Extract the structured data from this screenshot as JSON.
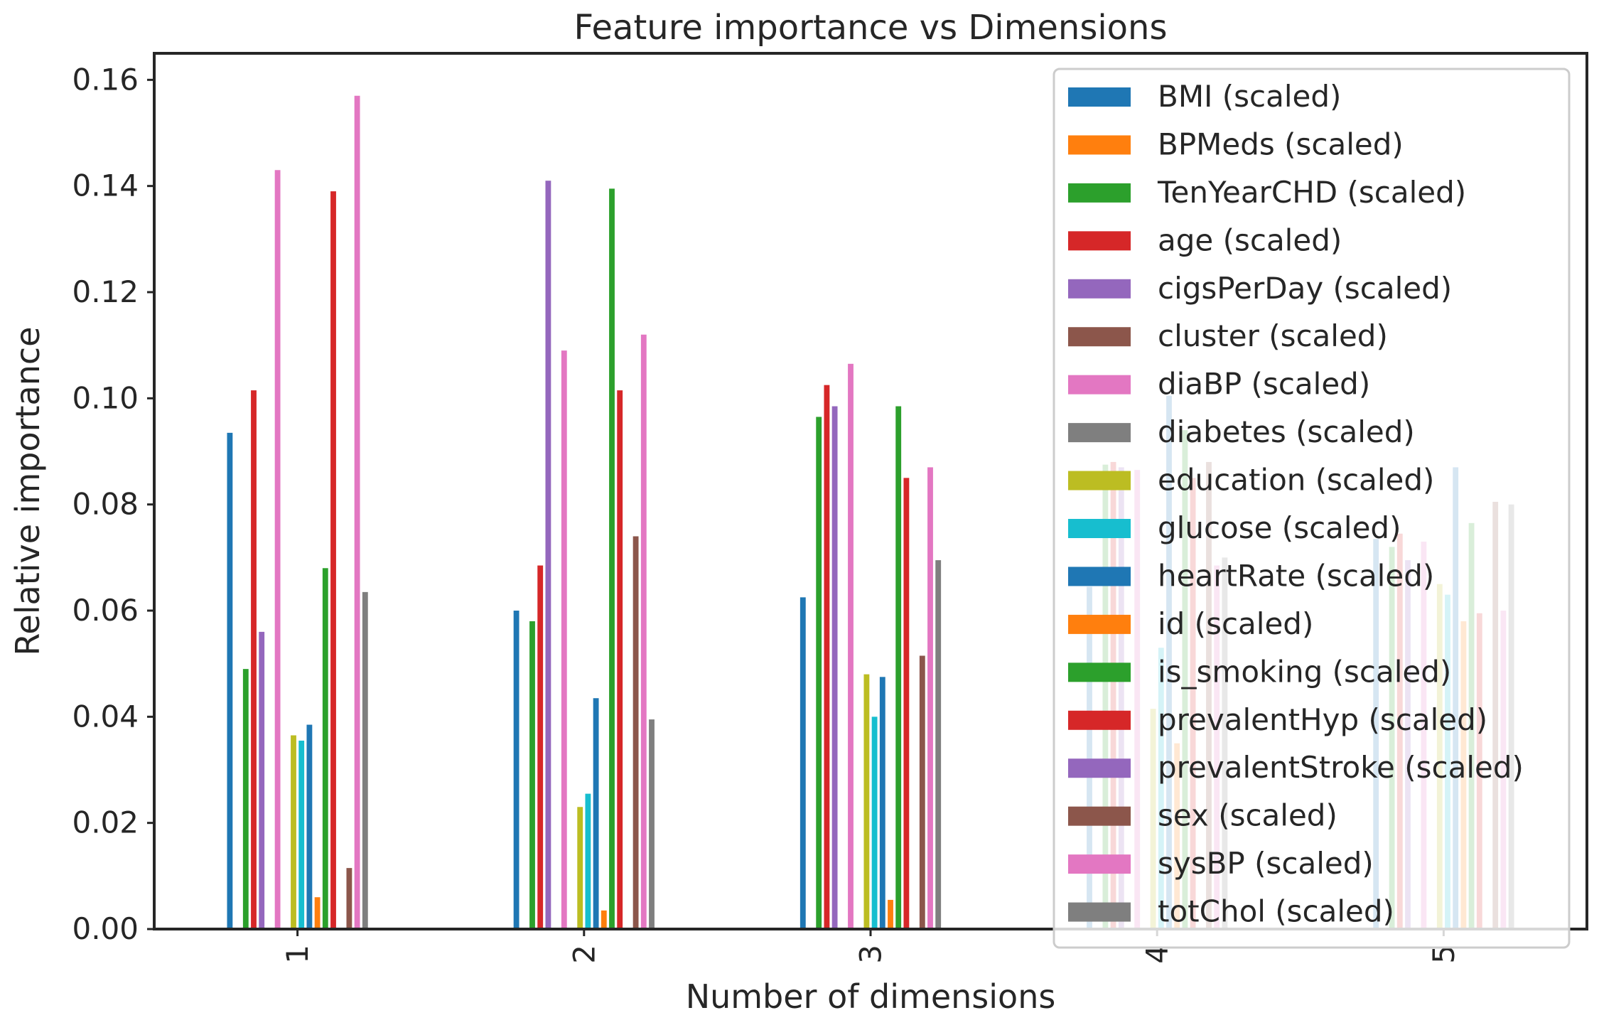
{
  "chart_data": {
    "type": "bar",
    "title": "Feature importance vs Dimensions",
    "xlabel": "Number of dimensions",
    "ylabel": "Relative importance",
    "categories": [
      "1",
      "2",
      "3",
      "4",
      "5"
    ],
    "ylim": [
      0,
      0.165
    ],
    "yticks": [
      "0.00",
      "0.02",
      "0.04",
      "0.06",
      "0.08",
      "0.10",
      "0.12",
      "0.14",
      "0.16"
    ],
    "grid": false,
    "legend_position": "top-right",
    "series": [
      {
        "name": "BMI (scaled)",
        "color": "#1f77b4",
        "values": [
          0.0935,
          0.06,
          0.0625,
          0.0645,
          0.0735
        ]
      },
      {
        "name": "BPMeds (scaled)",
        "color": "#ff7f0e",
        "values": [
          0,
          0,
          0,
          0,
          0
        ]
      },
      {
        "name": "TenYearCHD (scaled)",
        "color": "#2ca02c",
        "values": [
          0.049,
          0.058,
          0.0965,
          0.0875,
          0.072
        ]
      },
      {
        "name": "age (scaled)",
        "color": "#d62728",
        "values": [
          0.1015,
          0.0685,
          0.1025,
          0.088,
          0.0745
        ]
      },
      {
        "name": "cigsPerDay (scaled)",
        "color": "#9467bd",
        "values": [
          0.056,
          0.141,
          0.0985,
          0.087,
          0.0695
        ]
      },
      {
        "name": "cluster (scaled)",
        "color": "#8c564b",
        "values": [
          0,
          0,
          0,
          0,
          0
        ]
      },
      {
        "name": "diaBP (scaled)",
        "color": "#e377c2",
        "values": [
          0.143,
          0.109,
          0.1065,
          0.0865,
          0.073
        ]
      },
      {
        "name": "diabetes (scaled)",
        "color": "#7f7f7f",
        "values": [
          0,
          0,
          0,
          0,
          0
        ]
      },
      {
        "name": "education (scaled)",
        "color": "#bcbd22",
        "values": [
          0.0365,
          0.023,
          0.048,
          0.0415,
          0.065
        ]
      },
      {
        "name": "glucose (scaled)",
        "color": "#17becf",
        "values": [
          0.0355,
          0.0255,
          0.04,
          0.053,
          0.063
        ]
      },
      {
        "name": "heartRate (scaled)",
        "color": "#1f77b4",
        "values": [
          0.0385,
          0.0435,
          0.0475,
          0.1005,
          0.087
        ]
      },
      {
        "name": "id (scaled)",
        "color": "#ff7f0e",
        "values": [
          0.006,
          0.0035,
          0.0055,
          0.035,
          0.058
        ]
      },
      {
        "name": "is_smoking (scaled)",
        "color": "#2ca02c",
        "values": [
          0.068,
          0.1395,
          0.0985,
          0.094,
          0.0765
        ]
      },
      {
        "name": "prevalentHyp (scaled)",
        "color": "#d62728",
        "values": [
          0.139,
          0.1015,
          0.085,
          0.085,
          0.0595
        ]
      },
      {
        "name": "prevalentStroke (scaled)",
        "color": "#9467bd",
        "values": [
          0,
          0,
          0,
          0,
          0
        ]
      },
      {
        "name": "sex (scaled)",
        "color": "#8c564b",
        "values": [
          0.0115,
          0.074,
          0.0515,
          0.088,
          0.0805
        ]
      },
      {
        "name": "sysBP (scaled)",
        "color": "#e377c2",
        "values": [
          0.157,
          0.112,
          0.087,
          0.0685,
          0.06
        ]
      },
      {
        "name": "totChol (scaled)",
        "color": "#7f7f7f",
        "values": [
          0.0635,
          0.0395,
          0.0695,
          0.07,
          0.08
        ]
      }
    ]
  }
}
